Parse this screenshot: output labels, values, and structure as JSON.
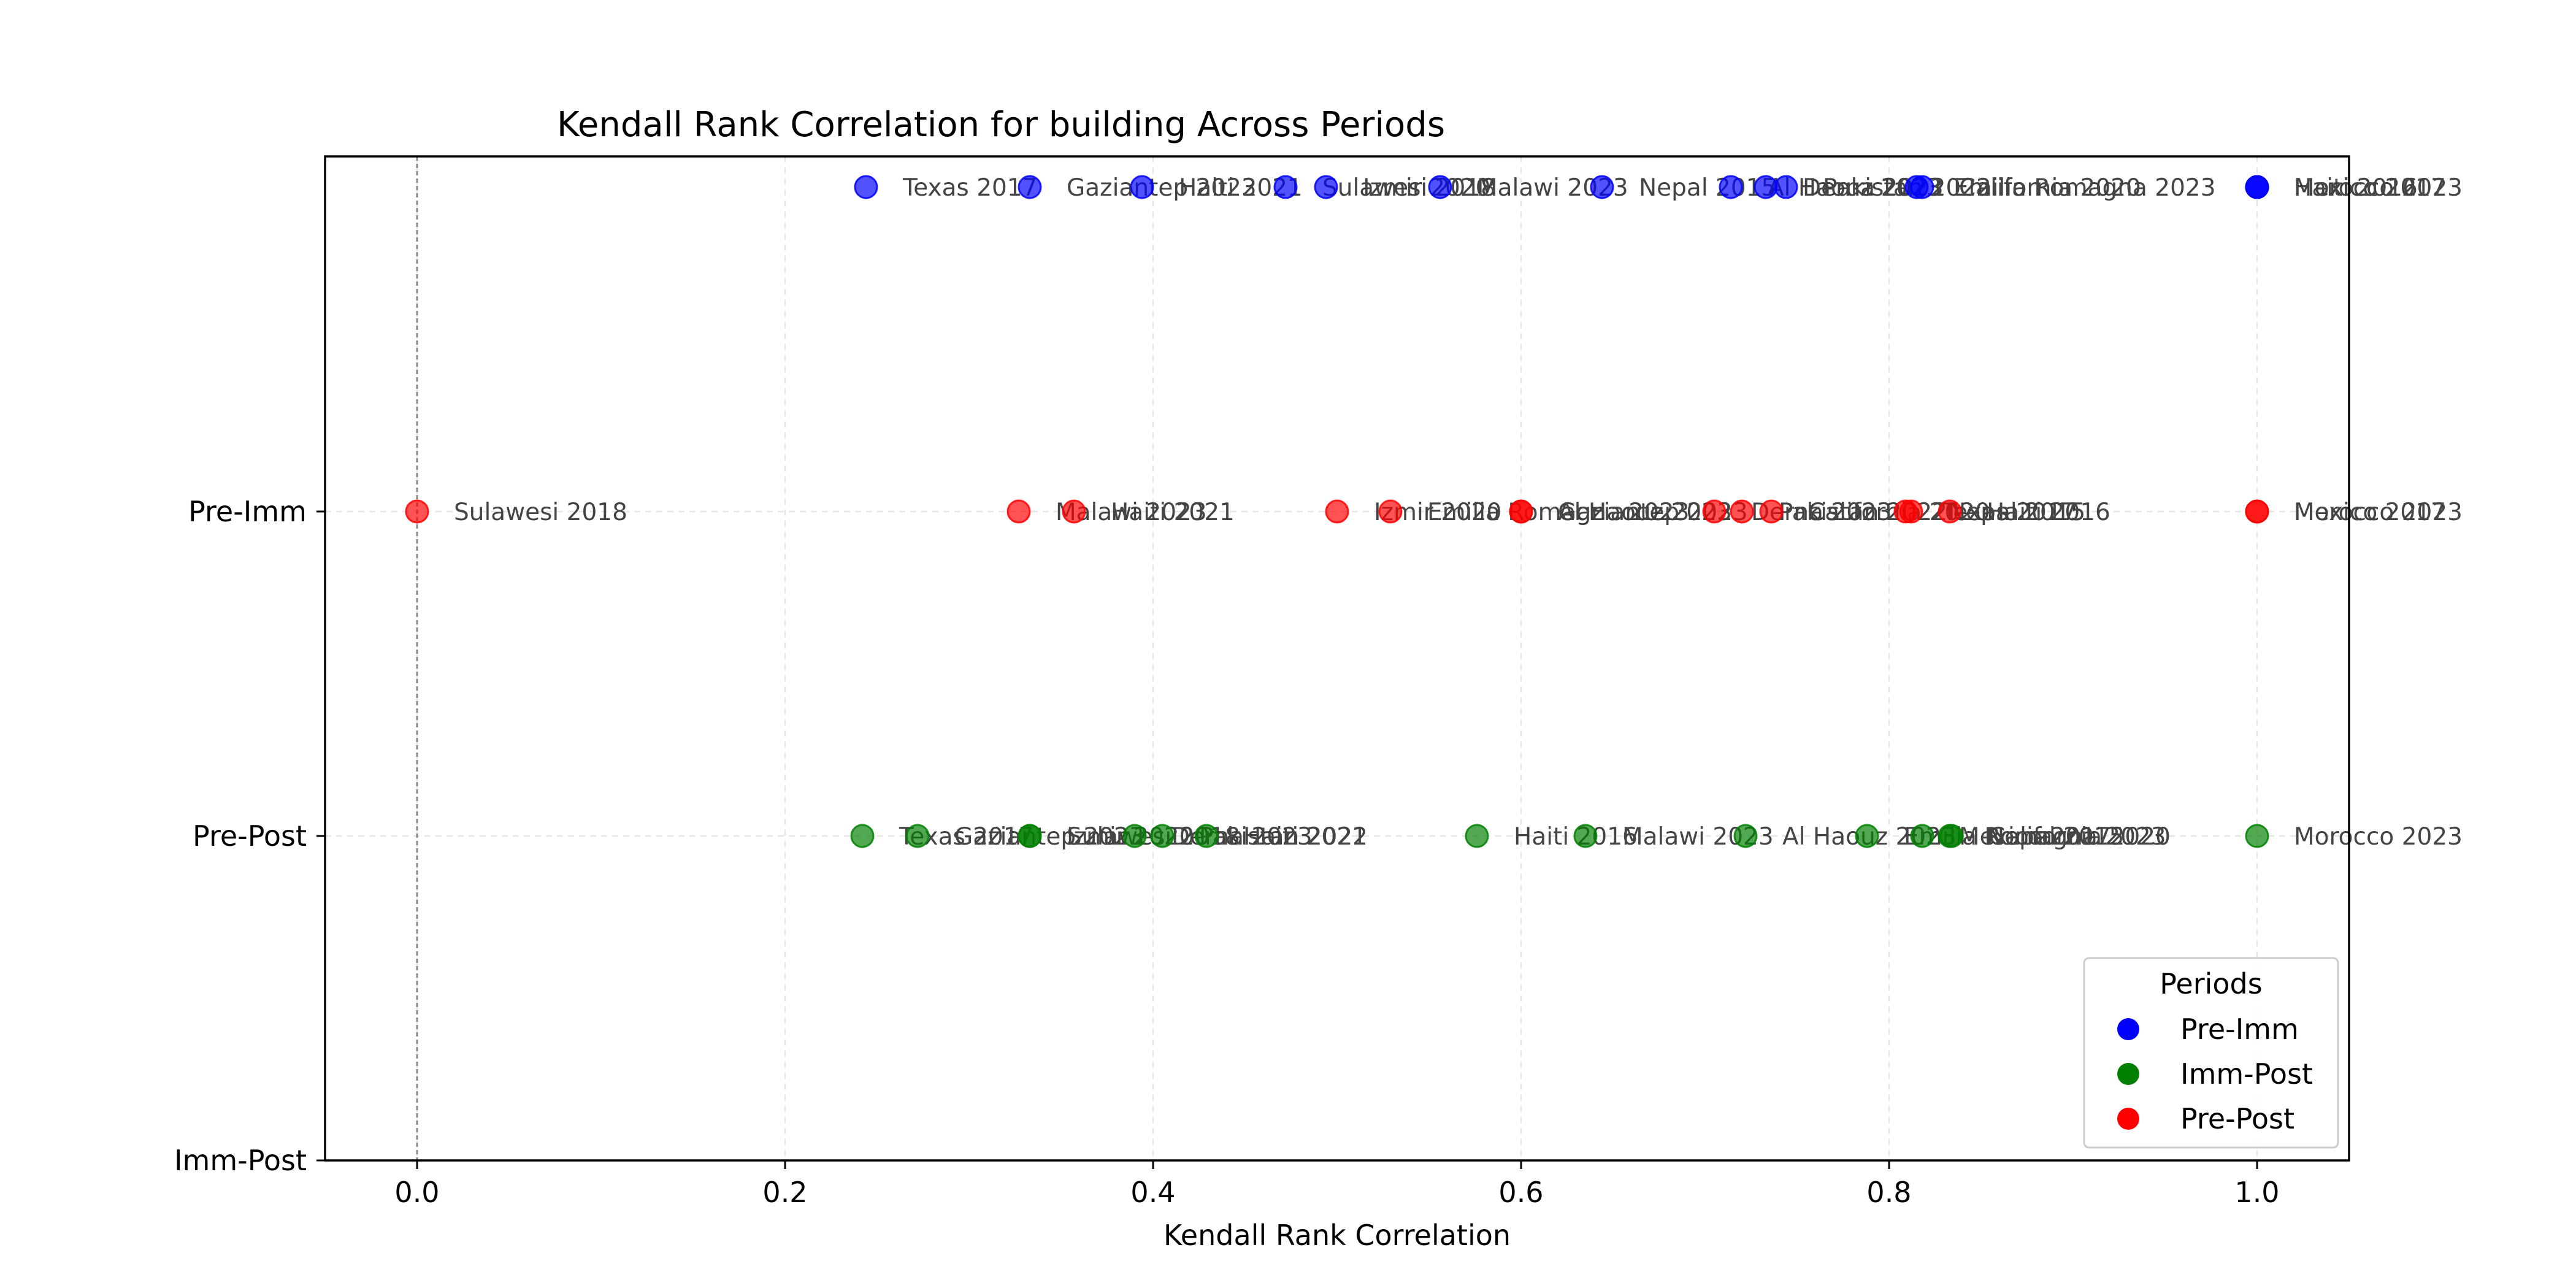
{
  "chart_data": {
    "type": "scatter",
    "title": "Kendall Rank Correlation for building Across Periods",
    "xlabel": "Kendall Rank Correlation",
    "ylabel": "",
    "xlim": [
      -0.05,
      1.05
    ],
    "xticks": [
      0.0,
      0.2,
      0.4,
      0.6,
      0.8,
      1.0
    ],
    "xtick_labels": [
      "0.0",
      "0.2",
      "0.4",
      "0.6",
      "0.8",
      "1.0"
    ],
    "y_categories": [
      "Imm-Post",
      "Pre-Post",
      "Pre-Imm"
    ],
    "grid": true,
    "reference_line_x": 0.0,
    "legend": {
      "title": "Periods",
      "placement": "bottom-right",
      "entries": [
        {
          "label": "Pre-Imm",
          "color": "#0000ff"
        },
        {
          "label": "Imm-Post",
          "color": "#008000"
        },
        {
          "label": "Pre-Post",
          "color": "#ff0000"
        }
      ]
    },
    "series": [
      {
        "name": "Pre-Imm",
        "color": "#0000ff",
        "row_position": 3,
        "points": [
          {
            "label": "Texas 2017",
            "x": 0.244
          },
          {
            "label": "Gaziantep 2023",
            "x": 0.333
          },
          {
            "label": "Haiti 2021",
            "x": 0.394
          },
          {
            "label": "Sulawesi 2018",
            "x": 0.472
          },
          {
            "label": "Izmir 2020",
            "x": 0.494
          },
          {
            "label": "Malawi 2023",
            "x": 0.556
          },
          {
            "label": "Nepal 2015",
            "x": 0.644
          },
          {
            "label": "Al Haouz 2023",
            "x": 0.714
          },
          {
            "label": "Derna 2023",
            "x": 0.733
          },
          {
            "label": "Pakistan 2022",
            "x": 0.744
          },
          {
            "label": "Emilia Romagna 2023",
            "x": 0.815
          },
          {
            "label": "California 2020",
            "x": 0.818
          },
          {
            "label": "Haiti 2016",
            "x": 1.0
          },
          {
            "label": "Morocco 2023",
            "x": 1.0
          },
          {
            "label": "Mexico 2017",
            "x": 1.0
          }
        ]
      },
      {
        "name": "Pre-Post",
        "color": "#ff0000",
        "row_position": 2,
        "points": [
          {
            "label": "Sulawesi 2018",
            "x": 0.0
          },
          {
            "label": "Malawi 2023",
            "x": 0.327
          },
          {
            "label": "Haiti 2021",
            "x": 0.357
          },
          {
            "label": "Izmir 2020",
            "x": 0.5
          },
          {
            "label": "Emilia Romagna 2023",
            "x": 0.529
          },
          {
            "label": "Al Haouz 2023",
            "x": 0.6
          },
          {
            "label": "Gaziantep 2023",
            "x": 0.6
          },
          {
            "label": "Derna 2023",
            "x": 0.705
          },
          {
            "label": "Pakistan 2022",
            "x": 0.72
          },
          {
            "label": "California 2020",
            "x": 0.736
          },
          {
            "label": "Texas 2017",
            "x": 0.809
          },
          {
            "label": "Nepal 2015",
            "x": 0.812
          },
          {
            "label": "Haiti 2016",
            "x": 0.833
          },
          {
            "label": "Morocco 2023",
            "x": 1.0
          },
          {
            "label": "Mexico 2017",
            "x": 1.0
          }
        ]
      },
      {
        "name": "Imm-Post",
        "color": "#008000",
        "row_position": 1,
        "points": [
          {
            "label": "Texas 2017",
            "x": 0.242
          },
          {
            "label": "Gaziantep 2023",
            "x": 0.272
          },
          {
            "label": "Sulawesi 2018",
            "x": 0.333
          },
          {
            "label": "Izmir 2020",
            "x": 0.333
          },
          {
            "label": "Derna 2023",
            "x": 0.39
          },
          {
            "label": "Pakistan 2022",
            "x": 0.405
          },
          {
            "label": "Haiti 2021",
            "x": 0.429
          },
          {
            "label": "Haiti 2016",
            "x": 0.576
          },
          {
            "label": "Malawi 2023",
            "x": 0.635
          },
          {
            "label": "Al Haouz 2023",
            "x": 0.722
          },
          {
            "label": "Emilia Romagna 2023",
            "x": 0.788
          },
          {
            "label": "Mexico 2017",
            "x": 0.818
          },
          {
            "label": "Nepal 2015",
            "x": 0.833
          },
          {
            "label": "California 2020",
            "x": 0.834
          },
          {
            "label": "Morocco 2023",
            "x": 1.0
          }
        ]
      }
    ]
  }
}
